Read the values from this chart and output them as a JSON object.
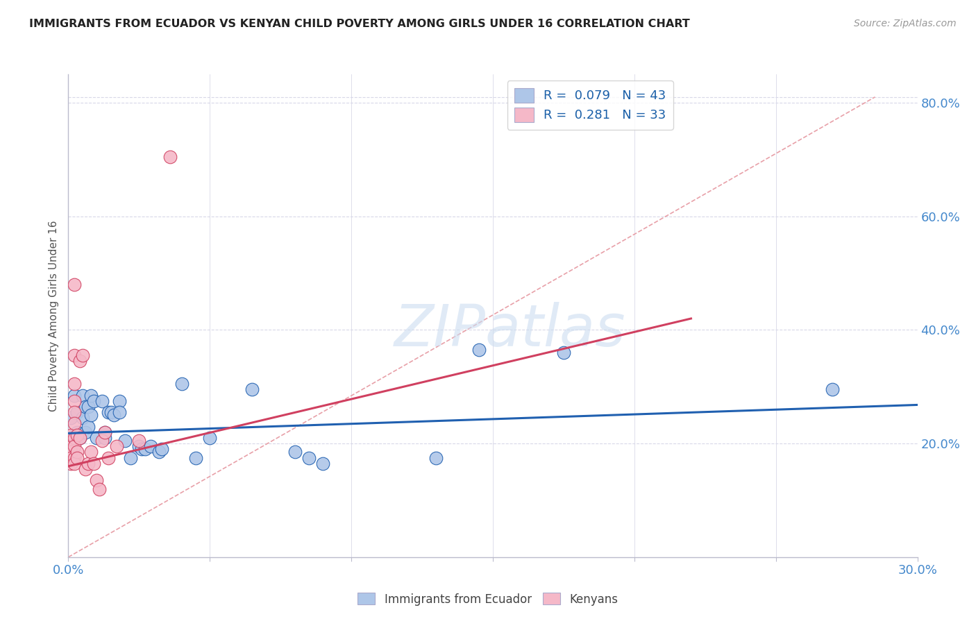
{
  "title": "IMMIGRANTS FROM ECUADOR VS KENYAN CHILD POVERTY AMONG GIRLS UNDER 16 CORRELATION CHART",
  "source": "Source: ZipAtlas.com",
  "ylabel": "Child Poverty Among Girls Under 16",
  "xlim": [
    0.0,
    0.3
  ],
  "ylim": [
    0.0,
    0.85
  ],
  "x_ticks": [
    0.0,
    0.05,
    0.1,
    0.15,
    0.2,
    0.25,
    0.3
  ],
  "x_tick_labels": [
    "0.0%",
    "",
    "",
    "",
    "",
    "",
    "30.0%"
  ],
  "y_ticks_right": [
    0.2,
    0.4,
    0.6,
    0.8
  ],
  "y_tick_labels_right": [
    "20.0%",
    "40.0%",
    "60.0%",
    "80.0%"
  ],
  "blue_scatter": [
    [
      0.001,
      0.245
    ],
    [
      0.002,
      0.215
    ],
    [
      0.002,
      0.285
    ],
    [
      0.003,
      0.22
    ],
    [
      0.003,
      0.255
    ],
    [
      0.004,
      0.21
    ],
    [
      0.005,
      0.285
    ],
    [
      0.005,
      0.245
    ],
    [
      0.006,
      0.265
    ],
    [
      0.006,
      0.22
    ],
    [
      0.007,
      0.265
    ],
    [
      0.007,
      0.23
    ],
    [
      0.008,
      0.285
    ],
    [
      0.008,
      0.25
    ],
    [
      0.009,
      0.275
    ],
    [
      0.01,
      0.21
    ],
    [
      0.012,
      0.275
    ],
    [
      0.013,
      0.22
    ],
    [
      0.013,
      0.21
    ],
    [
      0.014,
      0.255
    ],
    [
      0.015,
      0.255
    ],
    [
      0.016,
      0.25
    ],
    [
      0.018,
      0.275
    ],
    [
      0.018,
      0.255
    ],
    [
      0.02,
      0.205
    ],
    [
      0.022,
      0.175
    ],
    [
      0.025,
      0.195
    ],
    [
      0.026,
      0.19
    ],
    [
      0.027,
      0.19
    ],
    [
      0.029,
      0.195
    ],
    [
      0.032,
      0.185
    ],
    [
      0.033,
      0.19
    ],
    [
      0.04,
      0.305
    ],
    [
      0.045,
      0.175
    ],
    [
      0.05,
      0.21
    ],
    [
      0.065,
      0.295
    ],
    [
      0.08,
      0.185
    ],
    [
      0.085,
      0.175
    ],
    [
      0.09,
      0.165
    ],
    [
      0.13,
      0.175
    ],
    [
      0.145,
      0.365
    ],
    [
      0.175,
      0.36
    ],
    [
      0.27,
      0.295
    ]
  ],
  "pink_scatter": [
    [
      0.001,
      0.195
    ],
    [
      0.001,
      0.185
    ],
    [
      0.001,
      0.175
    ],
    [
      0.001,
      0.165
    ],
    [
      0.001,
      0.215
    ],
    [
      0.002,
      0.48
    ],
    [
      0.002,
      0.355
    ],
    [
      0.002,
      0.305
    ],
    [
      0.002,
      0.275
    ],
    [
      0.002,
      0.255
    ],
    [
      0.002,
      0.235
    ],
    [
      0.002,
      0.21
    ],
    [
      0.002,
      0.195
    ],
    [
      0.002,
      0.175
    ],
    [
      0.002,
      0.165
    ],
    [
      0.003,
      0.215
    ],
    [
      0.003,
      0.185
    ],
    [
      0.003,
      0.175
    ],
    [
      0.004,
      0.345
    ],
    [
      0.004,
      0.21
    ],
    [
      0.005,
      0.355
    ],
    [
      0.006,
      0.155
    ],
    [
      0.007,
      0.165
    ],
    [
      0.008,
      0.185
    ],
    [
      0.009,
      0.165
    ],
    [
      0.01,
      0.135
    ],
    [
      0.011,
      0.12
    ],
    [
      0.012,
      0.205
    ],
    [
      0.013,
      0.22
    ],
    [
      0.014,
      0.175
    ],
    [
      0.017,
      0.195
    ],
    [
      0.025,
      0.205
    ],
    [
      0.036,
      0.705
    ]
  ],
  "blue_line": [
    [
      0.0,
      0.218
    ],
    [
      0.3,
      0.268
    ]
  ],
  "pink_line": [
    [
      0.0,
      0.16
    ],
    [
      0.22,
      0.42
    ]
  ],
  "diagonal_line": [
    [
      0.0,
      0.0
    ],
    [
      0.285,
      0.81
    ]
  ],
  "blue_color": "#aec6e8",
  "pink_color": "#f5b8c8",
  "blue_line_color": "#2060b0",
  "pink_line_color": "#d04060",
  "diagonal_color": "#e8a0a8",
  "legend_R1": "R = 0.079",
  "legend_N1": "N = 43",
  "legend_R2": "R = 0.281",
  "legend_N2": "N = 33",
  "marker_size": 180,
  "background_color": "#ffffff",
  "grid_color": "#d8d8e8"
}
